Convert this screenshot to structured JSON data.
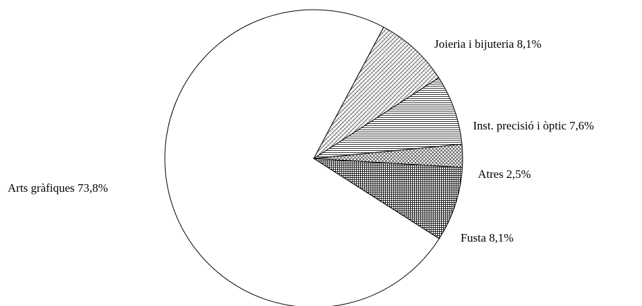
{
  "chart_data": {
    "type": "pie",
    "slices": [
      {
        "label": "Joieria i bijuteria",
        "value": 8.1,
        "display": "8,1%",
        "pattern": "diag-grid"
      },
      {
        "label": "Inst. precisió i òptic",
        "value": 7.6,
        "display": "7,6%",
        "pattern": "h-lines"
      },
      {
        "label": "Atres",
        "value": 2.5,
        "display": "2,5%",
        "pattern": "cross-hatch"
      },
      {
        "label": "Fusta",
        "value": 8.1,
        "display": "8,1%",
        "pattern": "dense-grid"
      },
      {
        "label": "Arts gràfiques",
        "value": 73.8,
        "display": "73,8%",
        "pattern": "none"
      }
    ],
    "start_angle_deg": 62,
    "direction": "clockwise",
    "colors": {
      "stroke": "#000000",
      "background": "#ffffff"
    }
  }
}
